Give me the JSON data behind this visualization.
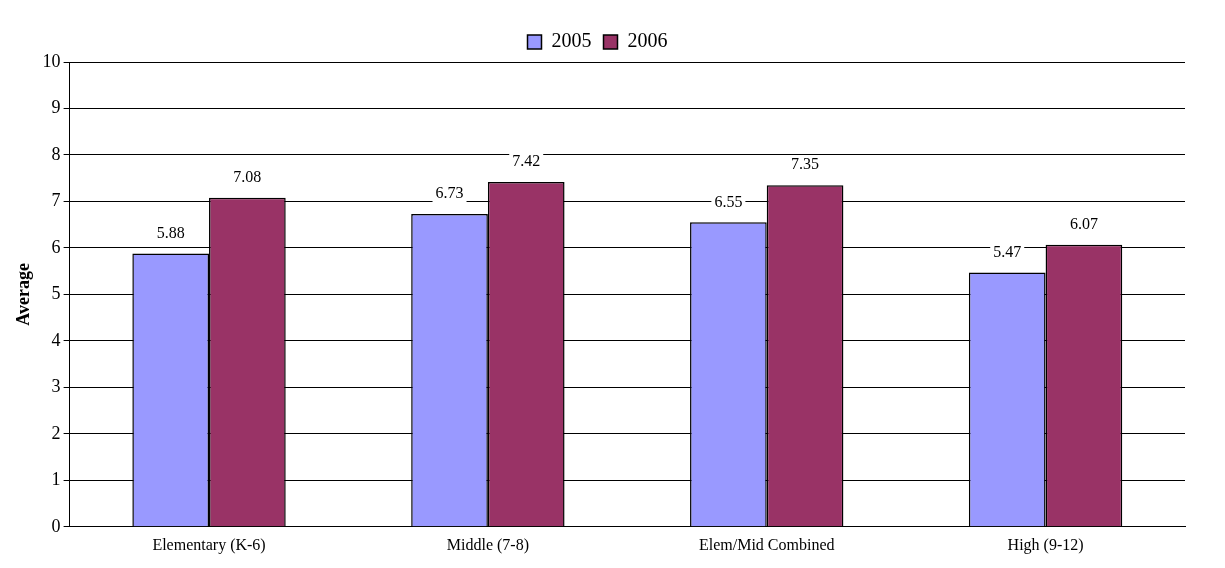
{
  "chart_data": {
    "type": "bar",
    "ylabel": "Average",
    "categories": [
      "Elementary (K-6)",
      "Middle (7-8)",
      "Elem/Mid Combined",
      "High (9-12)"
    ],
    "series": [
      {
        "name": "2005",
        "color": "#9999ff",
        "values": [
          5.88,
          6.73,
          6.55,
          5.47
        ]
      },
      {
        "name": "2006",
        "color": "#993366",
        "values": [
          7.08,
          7.42,
          7.35,
          6.07
        ]
      }
    ],
    "ylim": [
      0,
      10
    ],
    "yticks": [
      0,
      1,
      2,
      3,
      4,
      5,
      6,
      7,
      8,
      9,
      10
    ],
    "grid": "y",
    "legend": "top",
    "data_labels": true
  }
}
